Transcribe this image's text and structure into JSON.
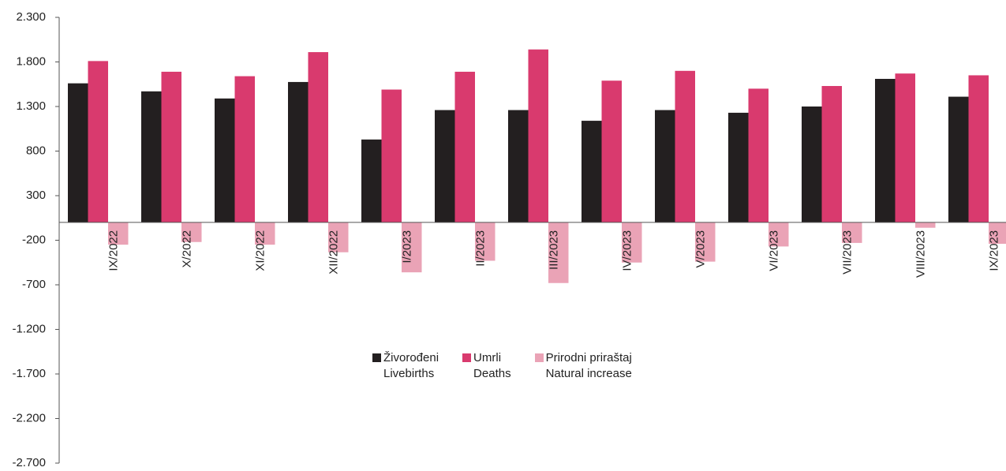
{
  "chart_data": {
    "type": "bar",
    "categories": [
      "IX/2022",
      "X/2022",
      "XI/2022",
      "XII/2022",
      "I/2023",
      "II/2023",
      "III/2023",
      "IV/2023",
      "V/2023",
      "VI/2023",
      "VII/2023",
      "VIII/2023",
      "IX/2023"
    ],
    "series": [
      {
        "name": "Živorođeni\nLivebirths",
        "color": "#231f20",
        "values": [
          1560,
          1470,
          1390,
          1575,
          930,
          1260,
          1260,
          1140,
          1260,
          1230,
          1300,
          1610,
          1410
        ]
      },
      {
        "name": "Umrli\nDeaths",
        "color": "#d93a6e",
        "values": [
          1810,
          1690,
          1640,
          1910,
          1490,
          1690,
          1940,
          1590,
          1700,
          1500,
          1530,
          1670,
          1650
        ]
      },
      {
        "name": "Prirodni priraštaj\nNatural increase",
        "color": "#eaa3b6",
        "values": [
          -250,
          -220,
          -250,
          -335,
          -560,
          -430,
          -680,
          -450,
          -440,
          -270,
          -230,
          -60,
          -240
        ]
      }
    ],
    "ylim": [
      -2700,
      2300
    ],
    "yticks": [
      {
        "value": 2300,
        "label": "2.300"
      },
      {
        "value": 1800,
        "label": "1.800"
      },
      {
        "value": 1300,
        "label": "1.300"
      },
      800,
      300,
      -200,
      -700,
      {
        "value": -1200,
        "label": "-1.200"
      },
      {
        "value": -1700,
        "label": "-1.700"
      },
      {
        "value": -2200,
        "label": "-2.200"
      },
      {
        "value": -2700,
        "label": "-2.700"
      }
    ],
    "grid": false
  }
}
